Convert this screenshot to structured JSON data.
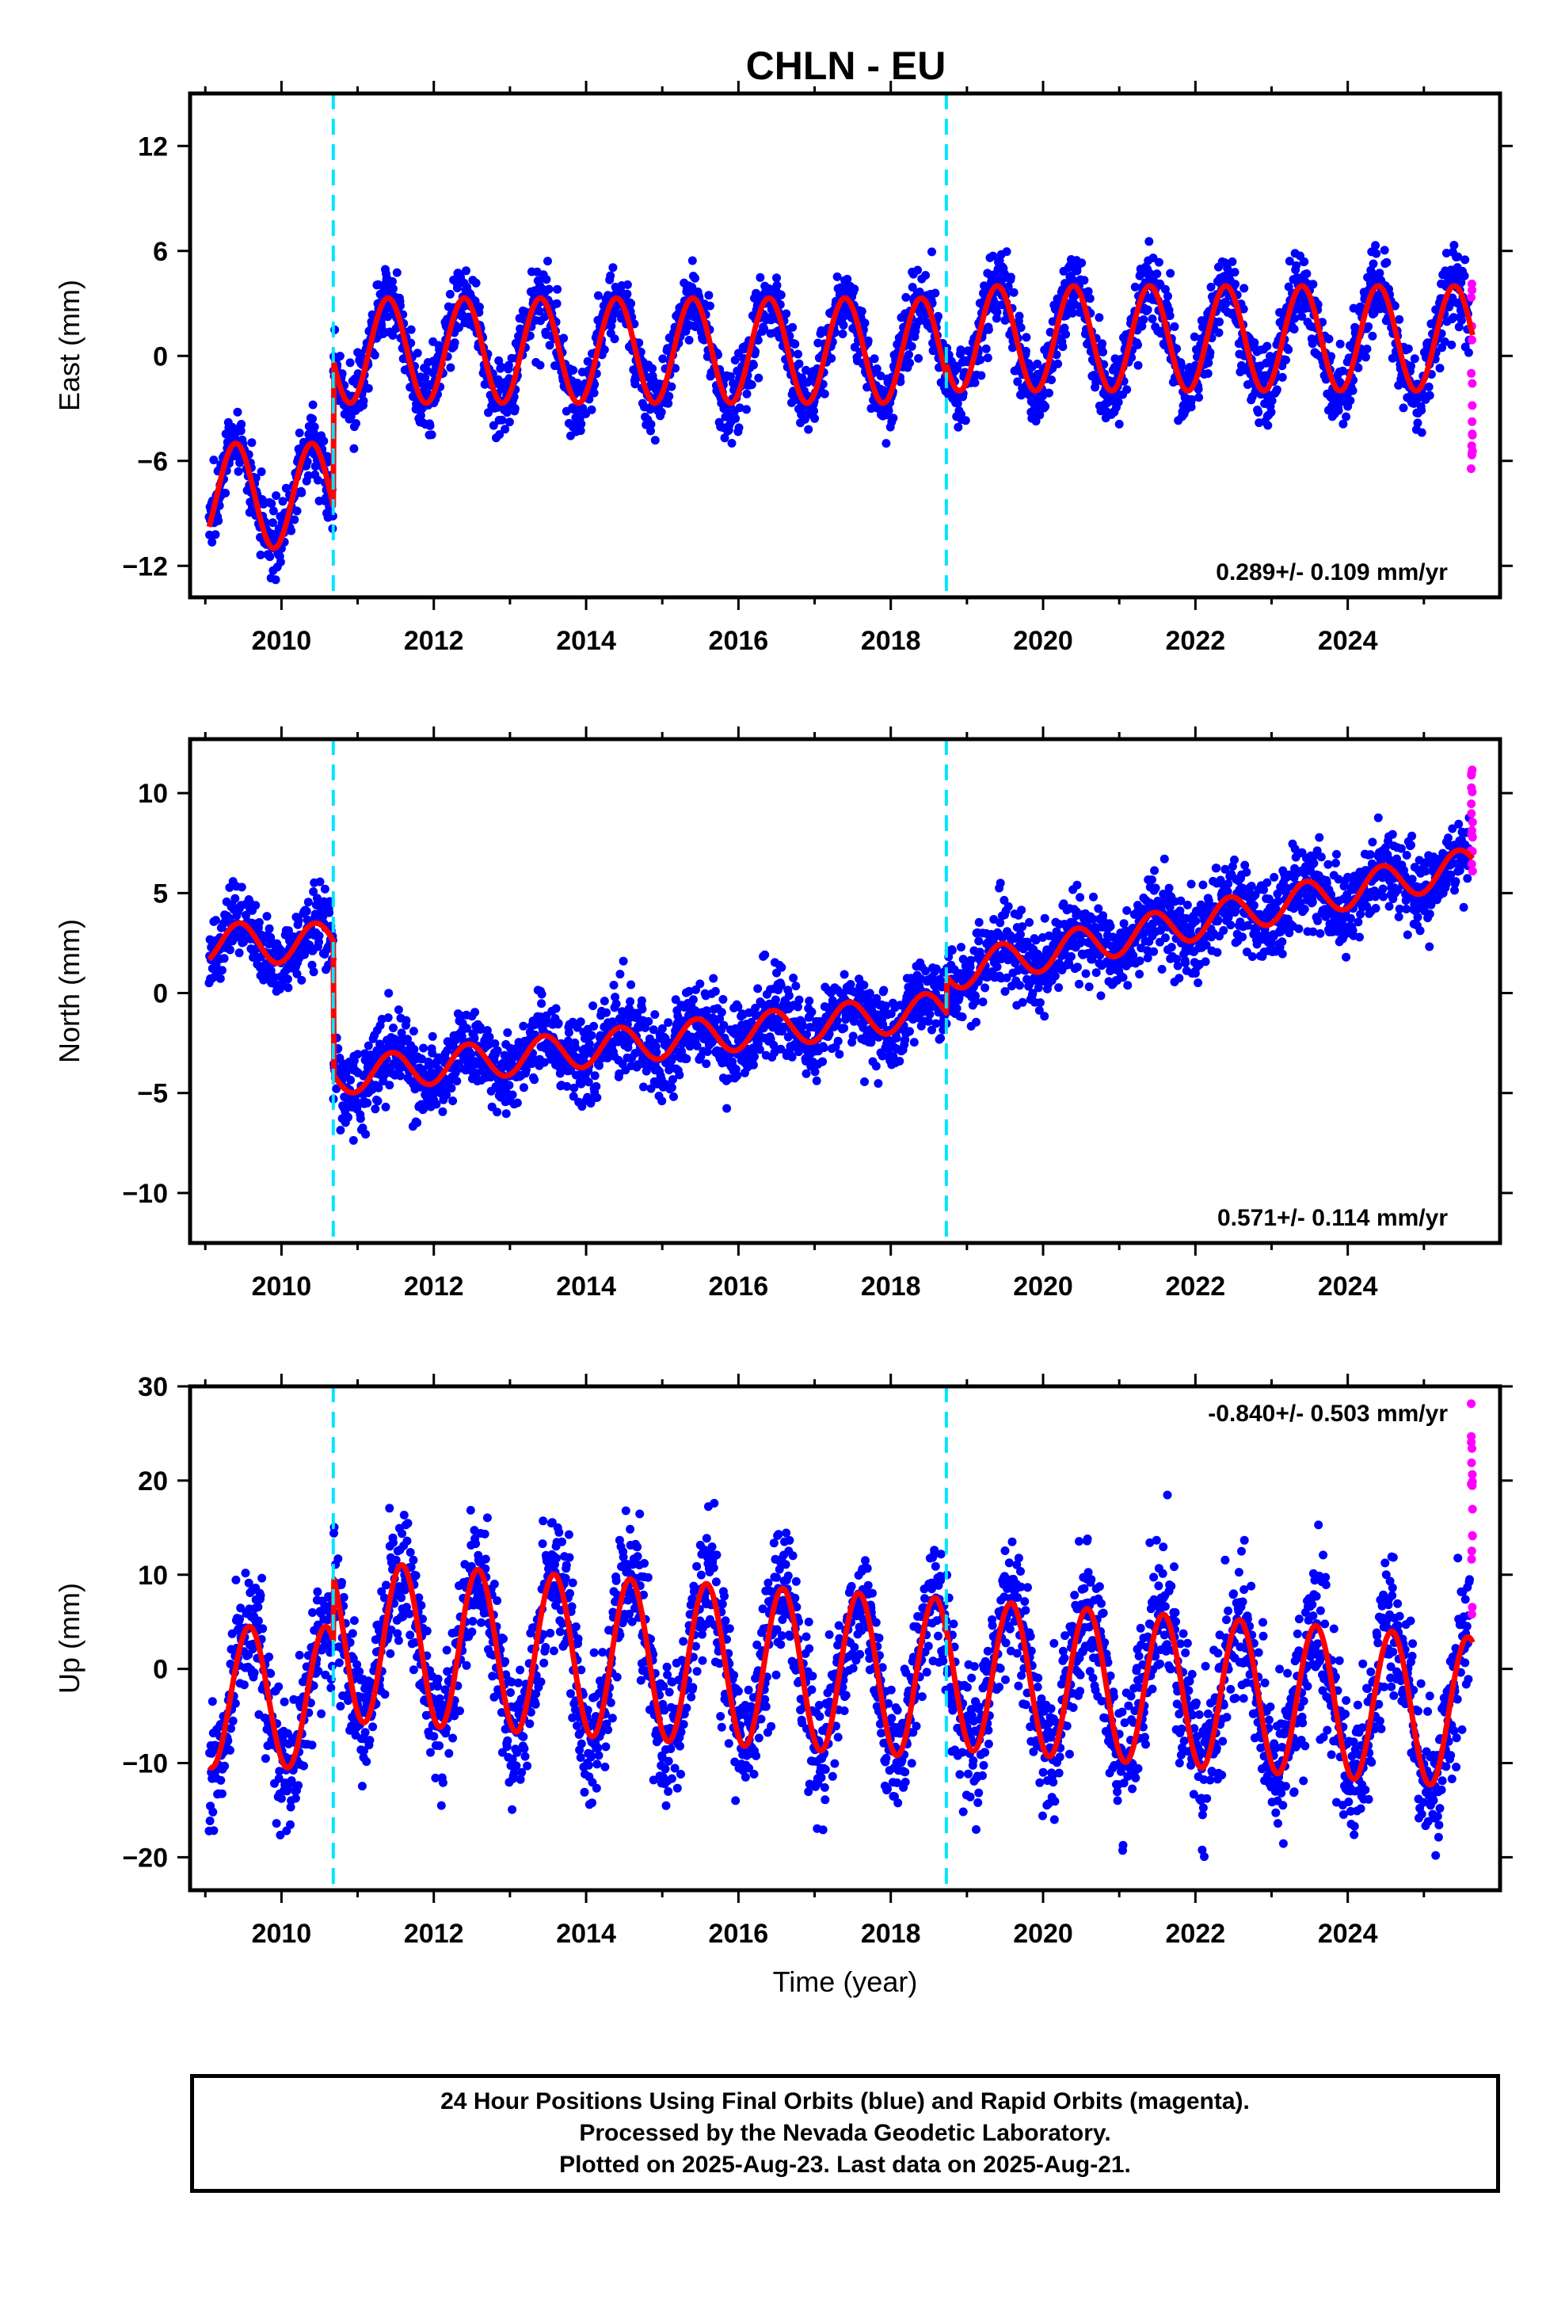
{
  "title": "CHLN - EU",
  "footer": {
    "line1": "24 Hour Positions Using Final Orbits (blue) and Rapid Orbits (magenta).",
    "line2": "Processed by the Nevada Geodetic Laboratory.",
    "line3": "Plotted on 2025-Aug-23. Last data on 2025-Aug-21."
  },
  "colors": {
    "final": "#0000ff",
    "rapid": "#ff00ff",
    "model": "#ff0000",
    "offset": "#00e5ff"
  },
  "chart_data": [
    {
      "type": "scatter",
      "ylabel": "East (mm)",
      "xlabel": "",
      "xlim": [
        2008.8,
        2026.0
      ],
      "ylim": [
        -13.8,
        15.0
      ],
      "xticks": [
        2010,
        2012,
        2014,
        2016,
        2018,
        2020,
        2022,
        2024
      ],
      "yticks": [
        -12,
        -6,
        0,
        6,
        12
      ],
      "rate_label": "0.289+/- 0.109 mm/yr",
      "rate_position": "bottom-right",
      "offsets": [
        2010.68,
        2018.73
      ],
      "start": 2009.05,
      "rapid_start": 2025.6,
      "end": 2025.64,
      "segments": [
        {
          "t0": 2009.05,
          "t1": 2010.68,
          "base": -8.0,
          "rate": 0.0,
          "amp": 3.0,
          "peak": 0.4,
          "noise": 1.0
        },
        {
          "t0": 2010.68,
          "t1": 2018.73,
          "base": 0.3,
          "rate": 0.0,
          "amp": 3.0,
          "peak": 0.4,
          "noise": 1.0
        },
        {
          "t0": 2018.73,
          "t1": 2025.64,
          "base": 1.0,
          "rate": 0.0,
          "amp": 3.0,
          "peak": 0.4,
          "noise": 1.1
        }
      ],
      "rapid_spread": [
        -8.0,
        5.0
      ]
    },
    {
      "type": "scatter",
      "ylabel": "North (mm)",
      "xlabel": "",
      "xlim": [
        2008.8,
        2026.0
      ],
      "ylim": [
        -12.5,
        12.7
      ],
      "xticks": [
        2010,
        2012,
        2014,
        2016,
        2018,
        2020,
        2022,
        2024
      ],
      "yticks": [
        -10,
        -5,
        0,
        5,
        10
      ],
      "rate_label": "0.571+/- 0.114 mm/yr",
      "rate_position": "bottom-right",
      "offsets": [
        2010.68,
        2018.73
      ],
      "start": 2009.05,
      "rapid_start": 2025.6,
      "end": 2025.64,
      "segments": [
        {
          "t0": 2009.05,
          "t1": 2010.68,
          "base": 2.5,
          "rate": 0.0,
          "amp": 1.0,
          "peak": 0.45,
          "noise": 0.9
        },
        {
          "t0": 2010.68,
          "t1": 2018.73,
          "base": -4.2,
          "rate": 0.42,
          "amp": 0.9,
          "peak": 0.45,
          "noise": 1.0
        },
        {
          "t0": 2018.73,
          "t1": 2025.64,
          "base": 1.0,
          "rate": 0.78,
          "amp": 0.9,
          "peak": 0.45,
          "noise": 1.0
        }
      ],
      "rapid_spread": [
        6.0,
        12.2
      ]
    },
    {
      "type": "scatter",
      "ylabel": "Up (mm)",
      "xlabel": "Time (year)",
      "xlim": [
        2008.8,
        2026.0
      ],
      "ylim": [
        -23.5,
        30.0
      ],
      "xticks": [
        2010,
        2012,
        2014,
        2016,
        2018,
        2020,
        2022,
        2024
      ],
      "yticks": [
        -20,
        -10,
        0,
        10,
        20,
        30
      ],
      "rate_label": "-0.840+/- 0.503 mm/yr",
      "rate_position": "top-right",
      "offsets": [
        2010.68,
        2018.73
      ],
      "start": 2009.05,
      "rapid_start": 2025.6,
      "end": 2025.64,
      "segments": [
        {
          "t0": 2009.05,
          "t1": 2010.68,
          "base": -3.0,
          "rate": 0.0,
          "amp": 7.5,
          "peak": 0.58,
          "noise": 3.5
        },
        {
          "t0": 2010.68,
          "t1": 2018.73,
          "base": 3.0,
          "rate": -0.5,
          "amp": 8.5,
          "peak": 0.58,
          "noise": 3.5
        },
        {
          "t0": 2018.73,
          "t1": 2025.64,
          "base": -0.5,
          "rate": -0.6,
          "amp": 8.0,
          "peak": 0.58,
          "noise": 3.8
        }
      ],
      "rapid_spread": [
        3.0,
        29.0
      ]
    }
  ]
}
